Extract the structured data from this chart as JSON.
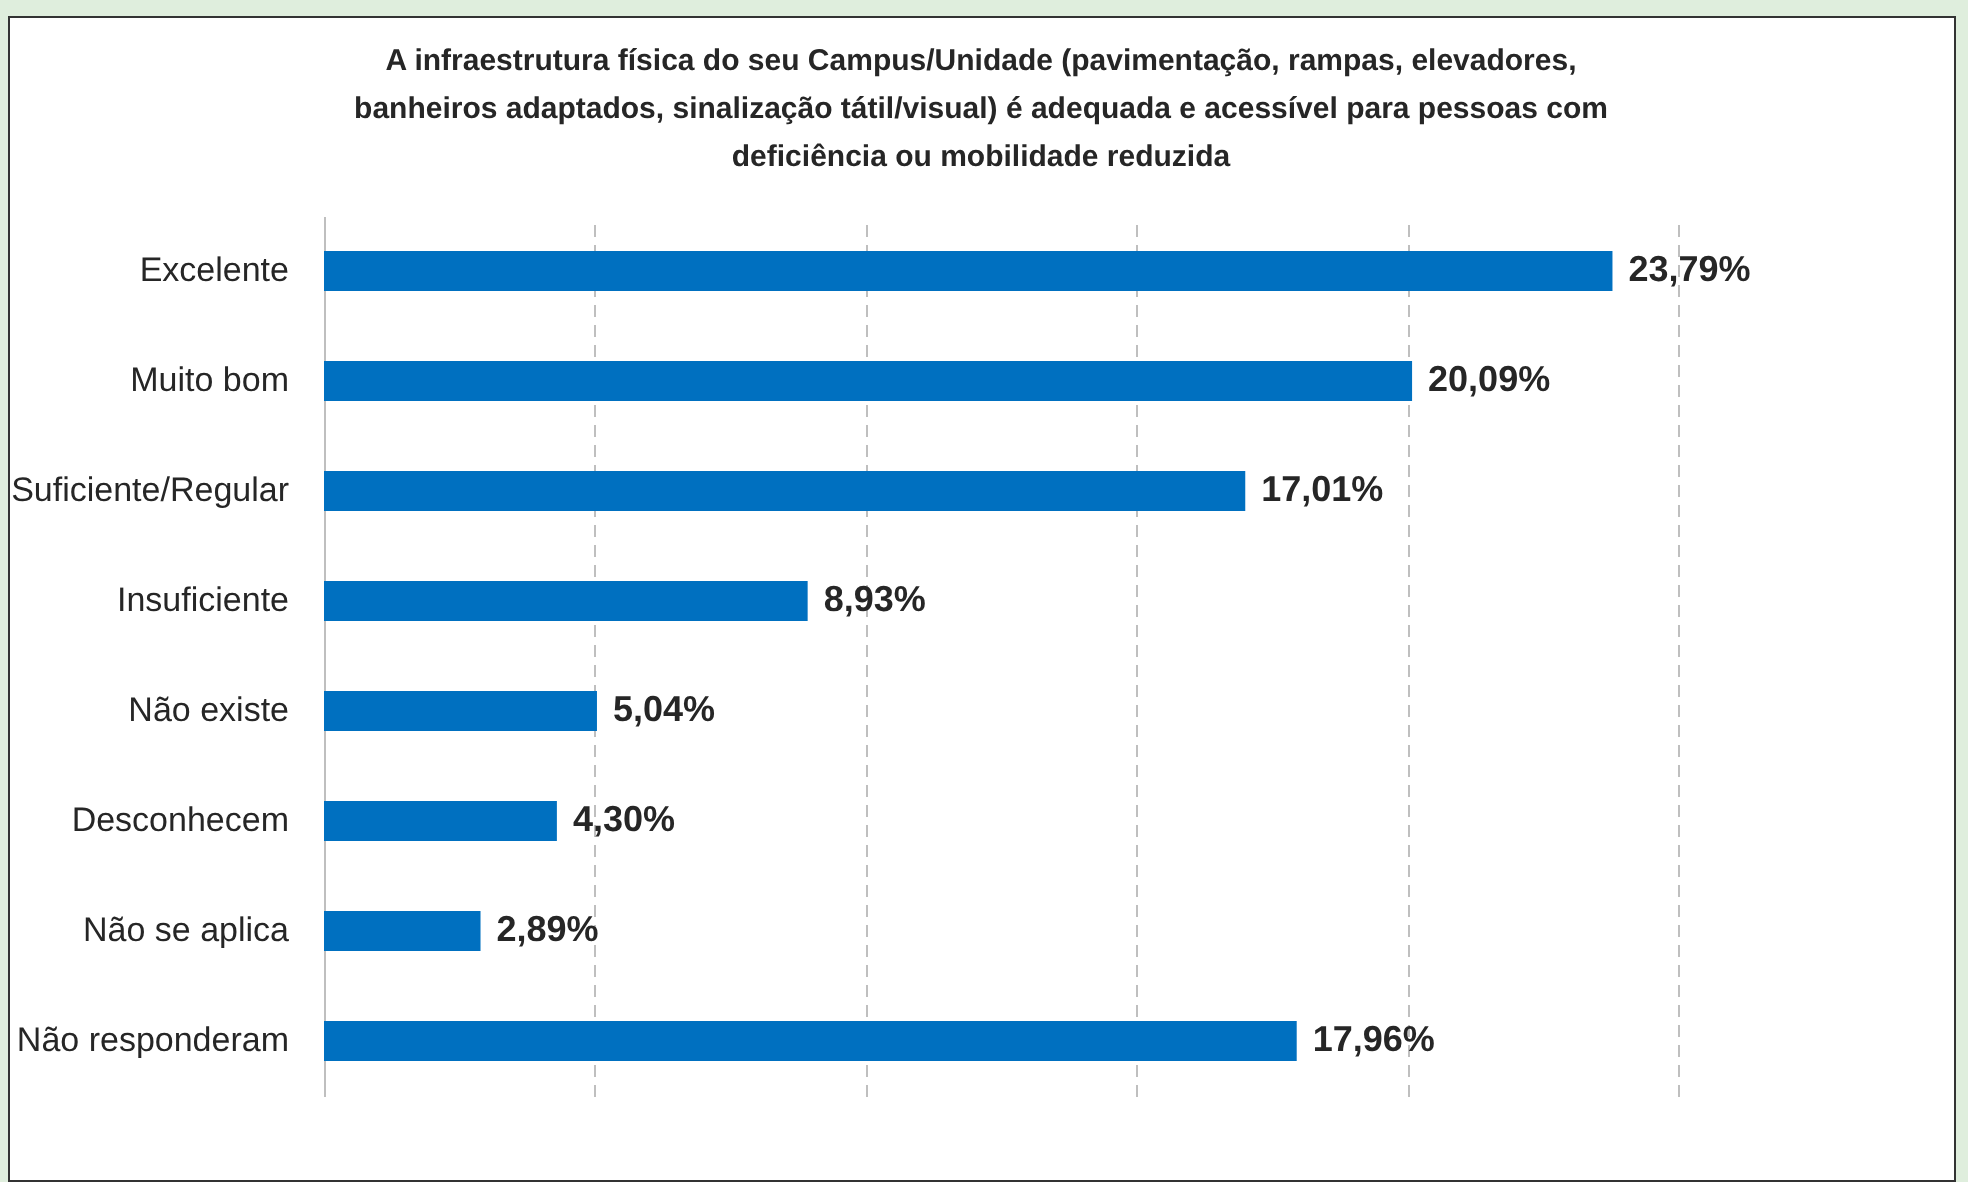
{
  "chart_data": {
    "type": "bar",
    "orientation": "horizontal",
    "title": "A infraestrutura física do seu Campus/Unidade (pavimentação, rampas, elevadores, banheiros adaptados, sinalização tátil/visual) é adequada e acessível para pessoas com deficiência ou mobilidade reduzida",
    "categories": [
      "Excelente",
      "Muito bom",
      "Suficiente/Regular",
      "Insuficiente",
      "Não existe",
      "Desconhecem",
      "Não se aplica",
      "Não responderam"
    ],
    "values": [
      23.79,
      20.09,
      17.01,
      8.93,
      5.04,
      4.3,
      2.89,
      17.96
    ],
    "value_labels": [
      "23,79%",
      "20,09%",
      "17,01%",
      "8,93%",
      "5,04%",
      "4,30%",
      "2,89%",
      "17,96%"
    ],
    "color": "#0070c0",
    "xlim": [
      0,
      25
    ],
    "xticks": [
      {
        "value": 0,
        "label": null
      },
      {
        "value": 5,
        "label": null
      },
      {
        "value": 10,
        "label": null
      },
      {
        "value": 15,
        "label": null
      },
      {
        "value": 20,
        "label": null
      },
      {
        "value": 25,
        "label": null
      }
    ],
    "tick_labels": "y",
    "grid": "x"
  }
}
